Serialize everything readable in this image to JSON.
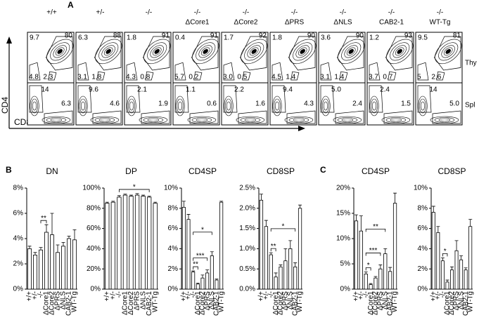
{
  "flow": {
    "label": "A",
    "y_axis": "CD4",
    "x_axis": "CD8",
    "genotypes": [
      [
        "+/+"
      ],
      [
        "+/-"
      ],
      [
        "-/-"
      ],
      [
        "-/-",
        "ΔCore1"
      ],
      [
        "-/-",
        "ΔCore2"
      ],
      [
        "-/-",
        "ΔPRS"
      ],
      [
        "-/-",
        "ΔNLS"
      ],
      [
        "-/-",
        "CAB2-1"
      ],
      [
        "-/-",
        "WT-Tg"
      ]
    ],
    "rows": [
      {
        "name": "Thy",
        "plots": [
          {
            "tl": "9.7",
            "tr": "80",
            "bl": "4.8",
            "br": "2.3"
          },
          {
            "tl": "6.3",
            "tr": "88",
            "bl": "3.1",
            "br": "1.8"
          },
          {
            "tl": "1.8",
            "tr": "91",
            "bl": "4.3",
            "br": "0.8"
          },
          {
            "tl": "0.4",
            "tr": "91",
            "bl": "5.7",
            "br": "0.2"
          },
          {
            "tl": "1.7",
            "tr": "92",
            "bl": "3.0",
            "br": "0.5"
          },
          {
            "tl": "1.8",
            "tr": "90",
            "bl": "4.5",
            "br": "1.4"
          },
          {
            "tl": "3.6",
            "tr": "90",
            "bl": "3.1",
            "br": "1.4"
          },
          {
            "tl": "1.2",
            "tr": "93",
            "bl": "3.7",
            "br": "0.7"
          },
          {
            "tl": "9.5",
            "tr": "81",
            "bl": "5",
            "br": "2.6"
          }
        ]
      },
      {
        "name": "Spl",
        "plots": [
          {
            "tl": "14",
            "br": "6.3"
          },
          {
            "tl": "9.6",
            "br": "4.6"
          },
          {
            "tl": "2.1",
            "br": "1.9"
          },
          {
            "tl": "1.1",
            "br": "0.6"
          },
          {
            "tl": "2.2",
            "br": "1.6"
          },
          {
            "tl": "9.4",
            "br": "4.3"
          },
          {
            "tl": "5.0",
            "br": "2.4"
          },
          {
            "tl": "2.4",
            "br": "1.5"
          },
          {
            "tl": "14",
            "br": "5.0"
          }
        ]
      }
    ]
  },
  "panel_labels": [
    "B",
    "C"
  ],
  "chart_data": [
    {
      "type": "bar",
      "title": "DN",
      "categories": [
        "+/+",
        "+/-",
        "-/-",
        "ΔCore1",
        "ΔCore2",
        "ΔPRS",
        "ΔNLS",
        "CAB2-1",
        "WT-Tg"
      ],
      "values": [
        3.2,
        2.7,
        3.1,
        4.5,
        4.3,
        2.9,
        3.4,
        4.0,
        3.9
      ],
      "errors": [
        0.2,
        0.2,
        0.2,
        0.6,
        1.7,
        0.6,
        0.3,
        0.2,
        0.8
      ],
      "ylim": [
        0,
        8
      ],
      "yticks": [
        {
          "value": 0,
          "label": "0%"
        },
        {
          "value": 2,
          "label": "2%"
        },
        {
          "value": 4,
          "label": "4%"
        },
        {
          "value": 6,
          "label": "6%"
        },
        {
          "value": 8,
          "label": "8%"
        }
      ],
      "significance": [
        {
          "label": "**",
          "between": [
            "-/-",
            "ΔCore1"
          ]
        }
      ]
    },
    {
      "type": "bar",
      "title": "DP",
      "categories": [
        "+/+",
        "+/-",
        "-/-",
        "ΔCore1",
        "ΔCore2",
        "ΔPRS",
        "ΔNLS",
        "CAB2-1",
        "WT-Tg"
      ],
      "values": [
        85,
        86,
        91,
        93,
        92,
        93,
        92,
        91,
        85
      ],
      "errors": [
        1,
        1,
        1.5,
        1,
        1,
        1.5,
        1,
        1,
        1
      ],
      "ylim": [
        0,
        100
      ],
      "yticks": [
        {
          "value": 0,
          "label": "0%"
        },
        {
          "value": 20,
          "label": "20%"
        },
        {
          "value": 40,
          "label": "40%"
        },
        {
          "value": 60,
          "label": "60%"
        },
        {
          "value": 80,
          "label": "80%"
        },
        {
          "value": 100,
          "label": "100%"
        }
      ],
      "significance": [
        {
          "label": "*",
          "between": [
            "-/-",
            "CAB2-1"
          ]
        }
      ]
    },
    {
      "type": "bar",
      "title": "CD4SP",
      "categories": [
        "+/+",
        "+/-",
        "-/-",
        "ΔCore1",
        "ΔCore2",
        "ΔPRS",
        "ΔNLS",
        "CAB2-1",
        "WT-Tg"
      ],
      "values": [
        8.1,
        6.9,
        1.7,
        0.5,
        1.1,
        1.6,
        3.3,
        0.9,
        8.6
      ],
      "errors": [
        0.6,
        0.5,
        0.1,
        0.1,
        0.3,
        0.3,
        0.4,
        0.1,
        0.1
      ],
      "ylim": [
        0,
        10
      ],
      "yticks": [
        {
          "value": 0,
          "label": "0%"
        },
        {
          "value": 2,
          "label": "2%"
        },
        {
          "value": 4,
          "label": "4%"
        },
        {
          "value": 6,
          "label": "6%"
        },
        {
          "value": 8,
          "label": "8%"
        },
        {
          "value": 10,
          "label": "10%"
        }
      ],
      "significance": [
        {
          "label": "**",
          "between": [
            "-/-",
            "ΔCore1"
          ]
        },
        {
          "label": "***",
          "between": [
            "-/-",
            "ΔPRS"
          ]
        },
        {
          "label": "*",
          "between": [
            "-/-",
            "ΔNLS"
          ]
        }
      ]
    },
    {
      "type": "bar",
      "title": "CD8SP",
      "categories": [
        "+/+",
        "+/-",
        "-/-",
        "ΔCore1",
        "ΔCore2",
        "ΔPRS",
        "ΔNLS",
        "CAB2-1",
        "WT-Tg"
      ],
      "values": [
        2.2,
        1.55,
        0.85,
        0.3,
        0.55,
        0.7,
        1.0,
        0.55,
        2.0
      ],
      "errors": [
        0.15,
        0.15,
        0.05,
        0.1,
        0.05,
        0.3,
        0.2,
        0.1,
        0.08
      ],
      "ylim": [
        0,
        2.5
      ],
      "yticks": [
        {
          "value": 0,
          "label": "0.0%"
        },
        {
          "value": 0.5,
          "label": "0.5%"
        },
        {
          "value": 1,
          "label": "1.0%"
        },
        {
          "value": 1.5,
          "label": "1.5%"
        },
        {
          "value": 2,
          "label": "2.0%"
        },
        {
          "value": 2.5,
          "label": "2.5%"
        }
      ],
      "significance": [
        {
          "label": "**",
          "between": [
            "-/-",
            "ΔCore1"
          ]
        },
        {
          "label": "*",
          "between": [
            "-/-",
            "CAB2-1"
          ]
        }
      ]
    },
    {
      "type": "bar",
      "title": "CD4SP",
      "categories": [
        "+/+",
        "+/-",
        "-/-",
        "ΔCore1",
        "ΔCore2",
        "ΔPRS",
        "ΔNLS",
        "CAB2-1",
        "WT-Tg"
      ],
      "values": [
        13.5,
        11.5,
        3.0,
        0.9,
        2.2,
        4.0,
        7.0,
        3.5,
        17
      ],
      "errors": [
        1.2,
        3,
        0.4,
        0.2,
        0.3,
        0.8,
        1,
        0.8,
        2
      ],
      "ylim": [
        0,
        20
      ],
      "yticks": [
        {
          "value": 0,
          "label": "0%"
        },
        {
          "value": 5,
          "label": "5%"
        },
        {
          "value": 10,
          "label": "10%"
        },
        {
          "value": 15,
          "label": "15%"
        },
        {
          "value": 20,
          "label": "20%"
        }
      ],
      "significance": [
        {
          "label": "*",
          "between": [
            "-/-",
            "ΔCore1"
          ]
        },
        {
          "label": "***",
          "between": [
            "-/-",
            "ΔPRS"
          ]
        },
        {
          "label": "**",
          "between": [
            "-/-",
            "ΔNLS"
          ]
        }
      ]
    },
    {
      "type": "bar",
      "title": "CD8SP",
      "categories": [
        "+/+",
        "+/-",
        "-/-",
        "ΔCore1",
        "ΔCore2",
        "ΔPRS",
        "ΔNLS",
        "CAB2-1",
        "WT-Tg"
      ],
      "values": [
        7.6,
        5.6,
        2.8,
        0.7,
        1.9,
        3.8,
        2.9,
        1.9,
        6.2
      ],
      "errors": [
        0.6,
        0.6,
        0.3,
        0.2,
        0.3,
        1,
        0.4,
        0.2,
        0.7
      ],
      "ylim": [
        0,
        10
      ],
      "yticks": [
        {
          "value": 0,
          "label": "0%"
        },
        {
          "value": 2,
          "label": "2%"
        },
        {
          "value": 4,
          "label": "4%"
        },
        {
          "value": 6,
          "label": "6%"
        },
        {
          "value": 8,
          "label": "8%"
        },
        {
          "value": 10,
          "label": "10%"
        }
      ],
      "significance": [
        {
          "label": "*",
          "between": [
            "-/-",
            "ΔCore1"
          ]
        }
      ]
    }
  ]
}
